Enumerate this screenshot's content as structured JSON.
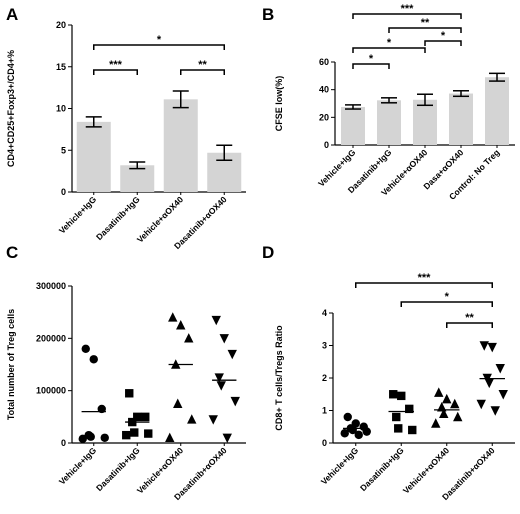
{
  "chart_data": [
    {
      "panel": "A",
      "type": "bar",
      "ylabel": "CD4+CD25+Foxp3+/CD4+%",
      "ylim": [
        0,
        20
      ],
      "yticks": [
        "0",
        "5",
        "10",
        "15",
        "20"
      ],
      "ytick_values": [
        0,
        5,
        10,
        15,
        20
      ],
      "categories": [
        "Vehicle+IgG",
        "Dasatinib+IgG",
        "Vehicle+αOX40",
        "Dasatinib+αOX40"
      ],
      "values": [
        8.4,
        3.2,
        11.1,
        4.7
      ],
      "errors": [
        0.6,
        0.4,
        1.0,
        0.9
      ],
      "bar_color": "#d4d4d4",
      "significance": [
        {
          "a": 0,
          "b": 1,
          "label": "***"
        },
        {
          "a": 2,
          "b": 3,
          "label": "**"
        },
        {
          "a": 0,
          "b": 3,
          "label": "*"
        }
      ]
    },
    {
      "panel": "B",
      "type": "bar",
      "ylabel": "CFSE low(%)",
      "ylim": [
        0,
        60
      ],
      "yticks": [
        "0",
        "20",
        "40",
        "60"
      ],
      "ytick_values": [
        0,
        20,
        40,
        60
      ],
      "categories": [
        "Vehicle+IgG",
        "Dasatinib+IgG",
        "Vehicle+αOX40",
        "Dasa+αOX40",
        "Control: No Treg"
      ],
      "values": [
        27.5,
        32.3,
        32.7,
        37.2,
        49
      ],
      "errors": [
        1.5,
        1.8,
        4.0,
        2.0,
        2.8
      ],
      "bar_color": "#d4d4d4",
      "significance": [
        {
          "a": 0,
          "b": 1,
          "label": "*"
        },
        {
          "a": 0,
          "b": 2,
          "label": "*"
        },
        {
          "a": 2,
          "b": 3,
          "label": "*"
        },
        {
          "a": 1,
          "b": 3,
          "label": "**"
        },
        {
          "a": 0,
          "b": 3,
          "label": "***"
        }
      ]
    },
    {
      "panel": "C",
      "type": "scatter",
      "ylabel": "Total number of Treg cells",
      "ylim": [
        0,
        300000
      ],
      "yticks": [
        "0",
        "100000",
        "200000",
        "300000"
      ],
      "ytick_values": [
        0,
        100000,
        200000,
        300000
      ],
      "categories": [
        "Vehicle+IgG",
        "Dasatinib+IgG",
        "Vehicle+αOX40",
        "Dasatinib+αOX40"
      ],
      "markers": [
        "circle",
        "square",
        "triangle-up",
        "triangle-down"
      ],
      "groups": [
        [
          180000,
          160000,
          65000,
          15000,
          12000,
          10000,
          8000
        ],
        [
          95000,
          50000,
          50000,
          40000,
          20000,
          18000,
          15000
        ],
        [
          240000,
          225000,
          200000,
          150000,
          75000,
          45000,
          10000
        ],
        [
          235000,
          200000,
          170000,
          125000,
          110000,
          80000,
          45000,
          10000
        ]
      ],
      "means": [
        60000,
        40000,
        150000,
        120000
      ]
    },
    {
      "panel": "D",
      "type": "scatter",
      "ylabel": "CD8+ T cells/Tregs Ratio",
      "ylim": [
        0,
        4
      ],
      "yticks": [
        "0",
        "1",
        "2",
        "3",
        "4"
      ],
      "ytick_values": [
        0,
        1,
        2,
        3,
        4
      ],
      "categories": [
        "Vehicle+IgG",
        "Dasatinib+IgG",
        "Vehicle+αOX40",
        "Dasatinib+αOX40"
      ],
      "markers": [
        "circle",
        "square",
        "triangle-up",
        "triangle-down"
      ],
      "groups": [
        [
          0.8,
          0.6,
          0.5,
          0.45,
          0.4,
          0.35,
          0.3,
          0.25
        ],
        [
          1.5,
          1.45,
          1.05,
          0.8,
          0.45,
          0.4
        ],
        [
          1.55,
          1.35,
          1.2,
          1.1,
          0.9,
          0.8,
          0.6
        ],
        [
          3.0,
          2.95,
          2.3,
          2.0,
          1.85,
          1.5,
          1.2,
          1.0
        ]
      ],
      "means": [
        0.45,
        0.97,
        1.02,
        1.98
      ],
      "significance": [
        {
          "a": 0,
          "b": 3,
          "label": "***"
        },
        {
          "a": 1,
          "b": 3,
          "label": "*"
        },
        {
          "a": 2,
          "b": 3,
          "label": "**"
        }
      ]
    }
  ]
}
